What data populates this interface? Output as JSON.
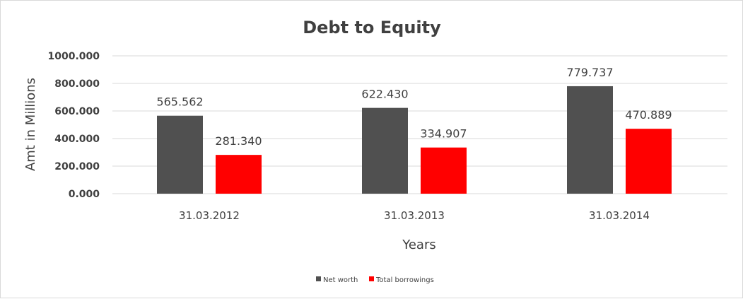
{
  "chart_data": {
    "type": "bar",
    "title": "Debt to Equity",
    "xlabel": "Years",
    "ylabel": "Amt in Millions",
    "categories": [
      "31.03.2012",
      "31.03.2013",
      "31.03.2014"
    ],
    "series": [
      {
        "name": "Net worth",
        "color": "#505050",
        "values": [
          565.562,
          622.43,
          779.737
        ],
        "labels": [
          "565.562",
          "622.430",
          "779.737"
        ]
      },
      {
        "name": "Total borrowings",
        "color": "#ff0000",
        "values": [
          281.34,
          334.907,
          470.889
        ],
        "labels": [
          "281.340",
          "334.907",
          "470.889"
        ]
      }
    ],
    "ylim": [
      0,
      1000
    ],
    "yticks": [
      "0.000",
      "200.000",
      "400.000",
      "600.000",
      "800.000",
      "1000.000"
    ],
    "grid": true,
    "legend_position": "bottom"
  }
}
